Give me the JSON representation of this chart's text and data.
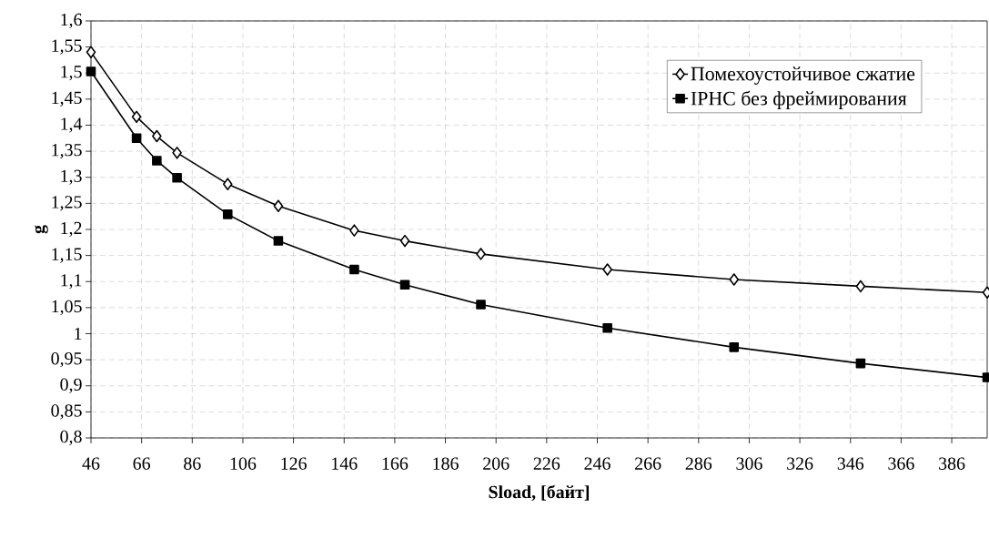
{
  "chart_data": {
    "type": "line",
    "xlabel": "Sload, [байт]",
    "ylabel": "g",
    "x": [
      46,
      64,
      72,
      80,
      100,
      120,
      150,
      170,
      200,
      250,
      300,
      350,
      400
    ],
    "series": [
      {
        "name": "Помехоустойчивое сжатие",
        "color": "#000000",
        "marker": "diamond",
        "values": [
          1.54,
          1.416,
          1.379,
          1.347,
          1.287,
          1.245,
          1.198,
          1.178,
          1.153,
          1.123,
          1.104,
          1.091,
          1.079
        ]
      },
      {
        "name": "IPHC без фреймирования",
        "color": "#000000",
        "marker": "square",
        "values": [
          1.503,
          1.375,
          1.332,
          1.299,
          1.229,
          1.178,
          1.123,
          1.094,
          1.056,
          1.011,
          0.974,
          0.943,
          0.916
        ]
      }
    ],
    "xlim": [
      46,
      400
    ],
    "xticks": [
      46,
      66,
      86,
      106,
      126,
      146,
      166,
      186,
      206,
      226,
      246,
      266,
      286,
      306,
      326,
      346,
      366,
      386
    ],
    "ylim": [
      0.8,
      1.6
    ],
    "yticks": [
      {
        "value": 0.8,
        "label": "0,8"
      },
      {
        "value": 0.85,
        "label": "0,85"
      },
      {
        "value": 0.9,
        "label": "0,9"
      },
      {
        "value": 0.95,
        "label": "0,95"
      },
      {
        "value": 1,
        "label": "1"
      },
      {
        "value": 1.05,
        "label": "1,05"
      },
      {
        "value": 1.1,
        "label": "1,1"
      },
      {
        "value": 1.15,
        "label": "1,15"
      },
      {
        "value": 1.2,
        "label": "1,2"
      },
      {
        "value": 1.25,
        "label": "1,25"
      },
      {
        "value": 1.3,
        "label": "1,3"
      },
      {
        "value": 1.35,
        "label": "1,35"
      },
      {
        "value": 1.4,
        "label": "1,4"
      },
      {
        "value": 1.45,
        "label": "1,45"
      },
      {
        "value": 1.5,
        "label": "1,5"
      },
      {
        "value": 1.55,
        "label": "1,55"
      },
      {
        "value": 1.6,
        "label": "1,6"
      }
    ],
    "grid": true,
    "legend": "top right",
    "line_style": "solid"
  }
}
